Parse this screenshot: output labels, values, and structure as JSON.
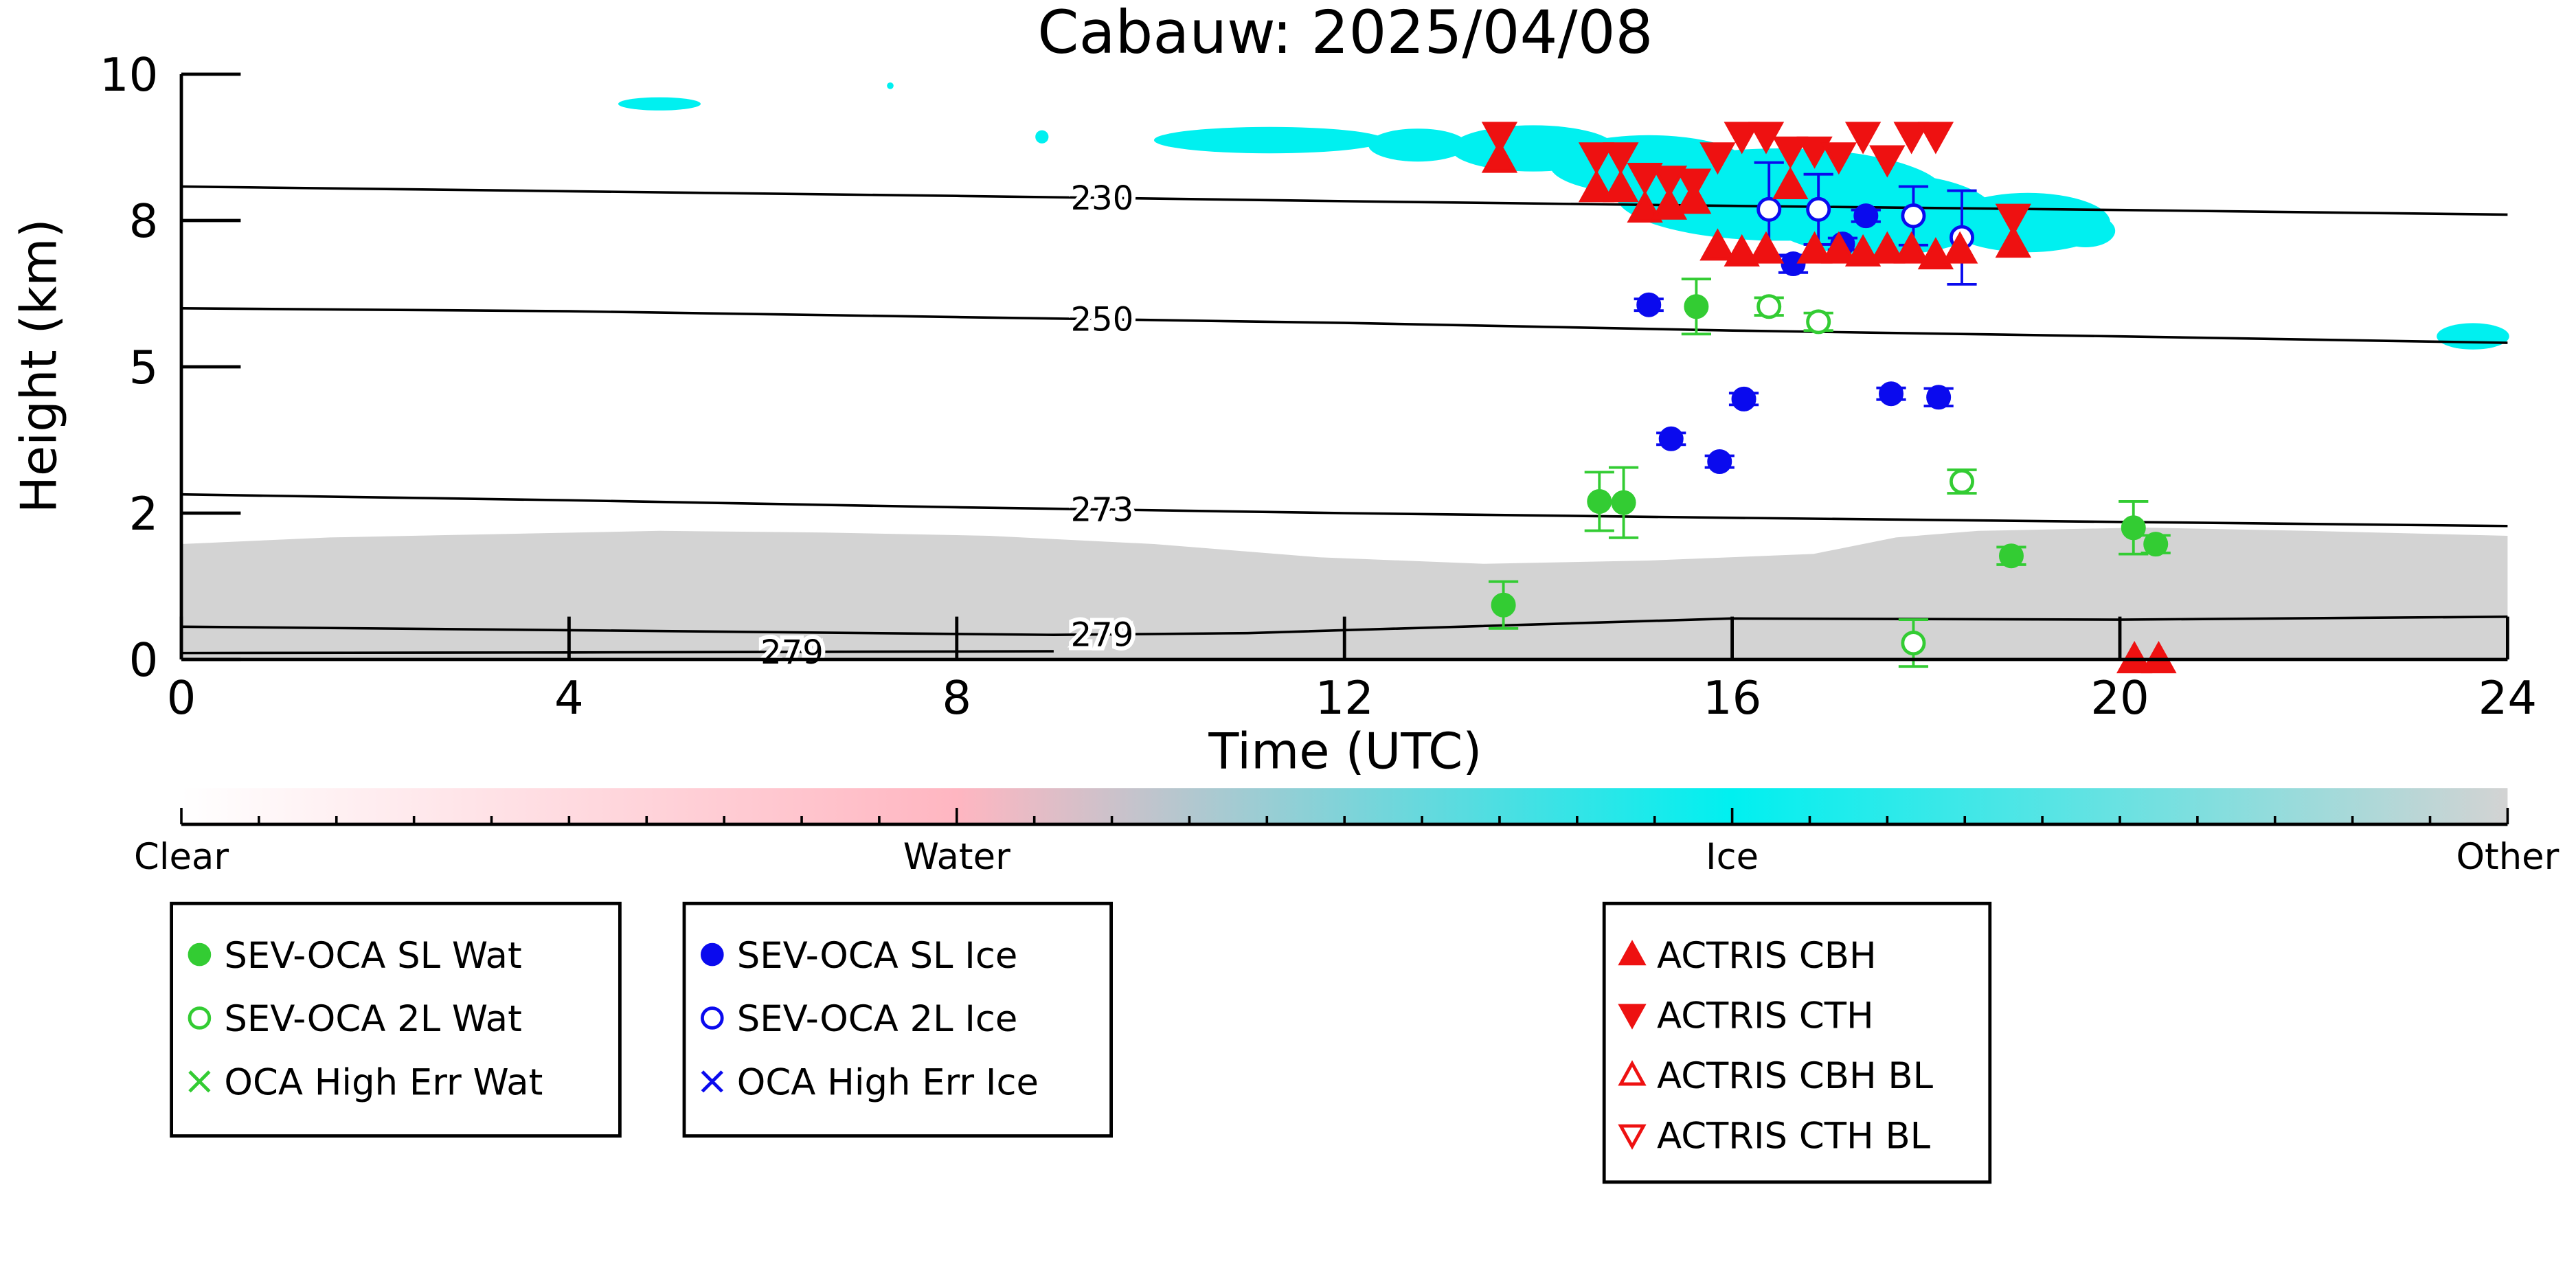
{
  "chart_data": {
    "type": "scatter",
    "title": "Cabauw: 2025/04/08",
    "x_label": "Time (UTC)",
    "y_label": "Height (km)",
    "xlim": [
      0,
      24
    ],
    "ylim": [
      0,
      10
    ],
    "xticks": [
      0,
      4,
      8,
      12,
      16,
      20,
      24
    ],
    "yticks": [
      0,
      {
        "value": 2.5,
        "label": "2"
      },
      5,
      {
        "value": 7.5,
        "label": "8"
      },
      10
    ],
    "series": [
      {
        "name": "SEV-OCA SL Wat",
        "color": "#33cc33",
        "marker": "circle",
        "x": [
          13.64,
          14.63,
          14.88,
          15.63,
          18.88,
          20.14,
          20.37
        ],
        "values": [
          0.93,
          2.7,
          2.68,
          6.03,
          1.77,
          2.25,
          1.97
        ],
        "errors": [
          0.4,
          0.5,
          0.6,
          0.47,
          0.15,
          0.45,
          0.15
        ]
      },
      {
        "name": "SEV-OCA 2L Wat",
        "color": "#33cc33",
        "marker": "open-circle",
        "x": [
          16.38,
          16.89,
          18.37,
          17.87
        ],
        "values": [
          6.03,
          5.77,
          3.04,
          0.28
        ],
        "errors": [
          0.15,
          0.15,
          0.2,
          0.4
        ]
      },
      {
        "name": "OCA High Err Wat",
        "color": "#33cc33",
        "marker": "cross",
        "x": [],
        "values": [],
        "errors": []
      },
      {
        "name": "SEV-OCA SL Ice",
        "color": "#0a0aee",
        "marker": "circle",
        "x": [
          15.14,
          15.37,
          15.87,
          16.12,
          16.63,
          17.14,
          17.38,
          17.64,
          18.13
        ],
        "values": [
          6.06,
          3.77,
          3.38,
          4.45,
          6.76,
          7.1,
          7.58,
          4.54,
          4.48
        ],
        "errors": [
          0.1,
          0.1,
          0.1,
          0.1,
          0.15,
          0.1,
          0.1,
          0.1,
          0.15
        ]
      },
      {
        "name": "SEV-OCA 2L Ice",
        "color": "#0a0aee",
        "marker": "open-circle",
        "x": [
          16.38,
          16.89,
          17.87,
          18.37
        ],
        "values": [
          7.69,
          7.69,
          7.58,
          7.21
        ],
        "errors": [
          0.8,
          0.6,
          0.5,
          0.8
        ]
      },
      {
        "name": "OCA High Err Ice",
        "color": "#0a0aee",
        "marker": "cross",
        "x": [],
        "values": [],
        "errors": []
      },
      {
        "name": "ACTRIS CBH",
        "color": "#ee1111",
        "marker": "triangle-up",
        "x": [
          13.6,
          14.6,
          14.85,
          15.1,
          15.35,
          15.6,
          15.85,
          16.1,
          16.35,
          16.6,
          16.85,
          17.1,
          17.35,
          17.6,
          17.85,
          18.1,
          18.35,
          18.9,
          20.15,
          20.4
        ],
        "values": [
          8.55,
          8.05,
          8.05,
          7.7,
          7.75,
          7.85,
          7.05,
          6.95,
          7.0,
          8.1,
          7.0,
          7.0,
          6.95,
          7.0,
          7.0,
          6.9,
          7.0,
          7.1,
          0,
          0
        ]
      },
      {
        "name": "ACTRIS CTH",
        "color": "#ee1111",
        "marker": "triangle-down",
        "x": [
          13.6,
          14.6,
          14.85,
          15.1,
          15.35,
          15.6,
          15.85,
          16.1,
          16.35,
          16.6,
          16.85,
          17.1,
          17.35,
          17.6,
          17.85,
          18.1,
          18.9
        ],
        "values": [
          8.95,
          8.6,
          8.6,
          8.25,
          8.2,
          8.15,
          8.6,
          8.95,
          8.95,
          8.7,
          8.7,
          8.6,
          8.95,
          8.55,
          8.95,
          8.95,
          7.55
        ]
      },
      {
        "name": "ACTRIS CBH BL",
        "color": "#ee1111",
        "marker": "open-triangle-up",
        "x": [],
        "values": []
      },
      {
        "name": "ACTRIS CTH BL",
        "color": "#ee1111",
        "marker": "open-triangle-down",
        "x": [],
        "values": []
      }
    ],
    "contours": [
      {
        "level": 230,
        "x": [
          0,
          4,
          8,
          12,
          16,
          20,
          24
        ],
        "values": [
          8.08,
          8.0,
          7.92,
          7.83,
          7.75,
          7.68,
          7.6
        ]
      },
      {
        "level": 250,
        "x": [
          0,
          4,
          8,
          12,
          16,
          20,
          24
        ],
        "values": [
          6.0,
          5.95,
          5.85,
          5.75,
          5.62,
          5.52,
          5.41
        ]
      },
      {
        "level": 273,
        "x": [
          0,
          4,
          8,
          12,
          16,
          20,
          24
        ],
        "values": [
          2.82,
          2.72,
          2.6,
          2.5,
          2.42,
          2.35,
          2.28
        ]
      },
      {
        "level": 279,
        "x": [
          0,
          4,
          9,
          11,
          16,
          20,
          24
        ],
        "values": [
          0.56,
          0.5,
          0.42,
          0.45,
          0.7,
          0.68,
          0.73
        ]
      },
      {
        "level": 279,
        "x": [
          0,
          4,
          9
        ],
        "values": [
          0.11,
          0.12,
          0.14
        ]
      }
    ],
    "colorbar": {
      "labels": [
        "Clear",
        "Water",
        "Ice",
        "Other"
      ],
      "colors": [
        "#ffffff",
        "#ffb6c1",
        "#00f0f0",
        "#d3d3d3"
      ]
    }
  }
}
